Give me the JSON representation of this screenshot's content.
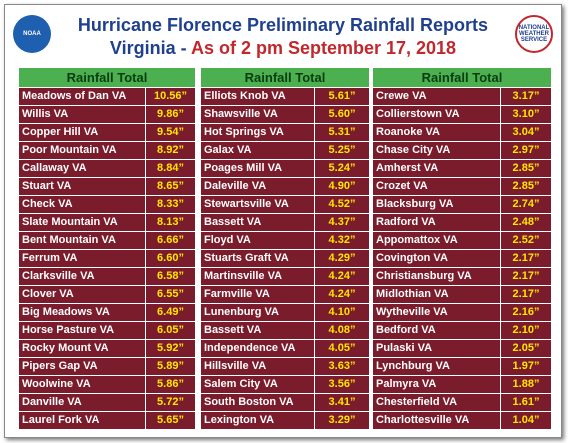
{
  "header": {
    "title": "Hurricane Florence Preliminary Rainfall Reports",
    "state": "Virginia -",
    "subtitle": "As of 2 pm September 17, 2018",
    "logos": [
      "NOAA",
      "NATIONAL WEATHER SERVICE"
    ]
  },
  "tables": [
    {
      "header": "Rainfall Total",
      "rows": [
        [
          "Meadows of Dan VA",
          "10.56”"
        ],
        [
          "Willis VA",
          "9.86”"
        ],
        [
          "Copper Hill VA",
          "9.54”"
        ],
        [
          "Poor Mountain VA",
          "8.92”"
        ],
        [
          "Callaway VA",
          "8.84”"
        ],
        [
          "Stuart VA",
          "8.65”"
        ],
        [
          "Check VA",
          "8.33”"
        ],
        [
          "Slate Mountain VA",
          "8.13”"
        ],
        [
          "Bent Mountain VA",
          "6.66”"
        ],
        [
          "Ferrum VA",
          "6.60”"
        ],
        [
          "Clarksville VA",
          "6.58”"
        ],
        [
          "Clover VA",
          "6.55”"
        ],
        [
          "Big Meadows VA",
          "6.49”"
        ],
        [
          "Horse Pasture VA",
          "6.05”"
        ],
        [
          "Rocky Mount VA",
          "5.92”"
        ],
        [
          "Pipers Gap VA",
          "5.89”"
        ],
        [
          "Woolwine VA",
          "5.86”"
        ],
        [
          "Danville VA",
          "5.72”"
        ],
        [
          "Laurel Fork VA",
          "5.65”"
        ]
      ]
    },
    {
      "header": "Rainfall Total",
      "rows": [
        [
          "Elliots Knob VA",
          "5.61”"
        ],
        [
          "Shawsville VA",
          "5.60”"
        ],
        [
          "Hot Springs VA",
          "5.31”"
        ],
        [
          "Galax VA",
          "5.25”"
        ],
        [
          "Poages Mill VA",
          "5.24”"
        ],
        [
          "Daleville VA",
          "4.90”"
        ],
        [
          "Stewartsville VA",
          "4.52”"
        ],
        [
          "Bassett VA",
          "4.37”"
        ],
        [
          "Floyd VA",
          "4.32”"
        ],
        [
          "Stuarts Graft VA",
          "4.29”"
        ],
        [
          "Martinsville VA",
          "4.24”"
        ],
        [
          "Farmville VA",
          "4.24”"
        ],
        [
          "Lunenburg VA",
          "4.10”"
        ],
        [
          "Bassett VA",
          "4.08”"
        ],
        [
          "Independence VA",
          "4.05”"
        ],
        [
          "Hillsville VA",
          "3.63”"
        ],
        [
          "Salem City VA",
          "3.56”"
        ],
        [
          "South Boston VA",
          "3.41”"
        ],
        [
          "Lexington VA",
          "3.29”"
        ]
      ]
    },
    {
      "header": "Rainfall Total",
      "rows": [
        [
          "Crewe VA",
          "3.17”"
        ],
        [
          "Collierstown VA",
          "3.10”"
        ],
        [
          "Roanoke VA",
          "3.04”"
        ],
        [
          "Chase City VA",
          "2.97”"
        ],
        [
          "Amherst VA",
          "2.85”"
        ],
        [
          "Crozet VA",
          "2.85”"
        ],
        [
          "Blacksburg VA",
          "2.74”"
        ],
        [
          "Radford VA",
          "2.48”"
        ],
        [
          "Appomattox VA",
          "2.52”"
        ],
        [
          "Covington VA",
          "2.17”"
        ],
        [
          "Christiansburg VA",
          "2.17”"
        ],
        [
          "Midlothian VA",
          "2.17”"
        ],
        [
          "Wytheville VA",
          "2.16”"
        ],
        [
          "Bedford VA",
          "2.10”"
        ],
        [
          "Pulaski VA",
          "2.05”"
        ],
        [
          "Lynchburg VA",
          "1.97”"
        ],
        [
          "Palmyra VA",
          "1.88”"
        ],
        [
          "Chesterfield VA",
          "1.61”"
        ],
        [
          "Charlottesville VA",
          "1.04”"
        ]
      ]
    }
  ]
}
